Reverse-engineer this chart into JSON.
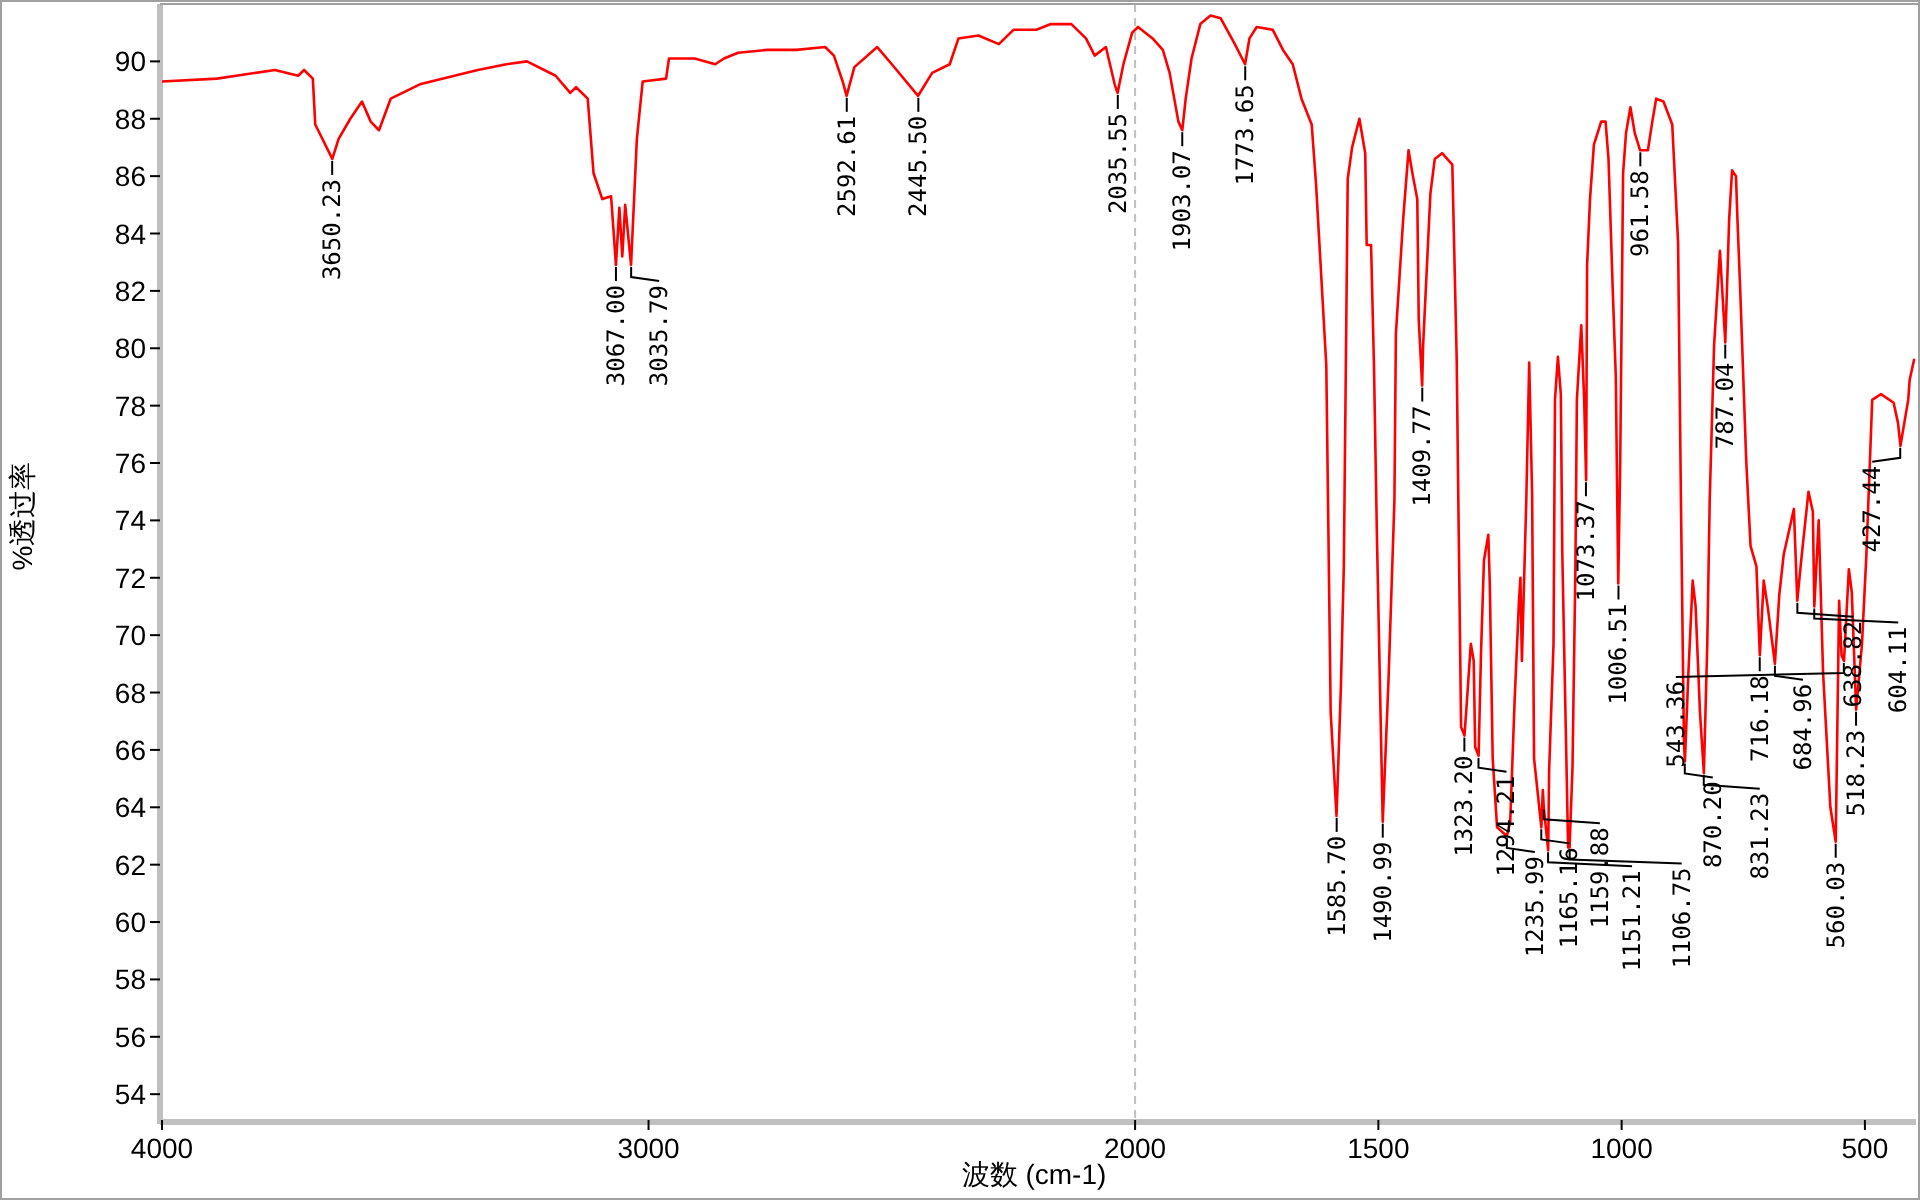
{
  "chart_data": {
    "type": "line",
    "xlabel": "波数 (cm-1)",
    "ylabel": "%透过率",
    "xlim": [
      4000,
      395
    ],
    "ylim": [
      53.1,
      92
    ],
    "xticks": [
      4000,
      3000,
      2000,
      1500,
      1000,
      500
    ],
    "yticks": [
      54,
      56,
      58,
      60,
      62,
      64,
      66,
      68,
      70,
      72,
      74,
      76,
      78,
      80,
      82,
      84,
      86,
      88,
      90
    ],
    "grid": false,
    "marker": "none",
    "line_style": "solid",
    "ref_lines": [
      {
        "axis": "x",
        "value": 2000,
        "label": null,
        "color": "#c0c0c0",
        "line_style": "dashed"
      }
    ],
    "series": [
      {
        "color": "#ff0000",
        "x": [
          4000,
          3887,
          3768,
          3720,
          3708,
          3690,
          3685,
          3650,
          3637,
          3613,
          3589,
          3571,
          3554,
          3530,
          3470,
          3351,
          3292,
          3250,
          3191,
          3161,
          3149,
          3125,
          3113,
          3095,
          3077,
          3067,
          3060,
          3054,
          3048,
          3036,
          3024,
          3012,
          2964,
          2958,
          2905,
          2863,
          2845,
          2816,
          2756,
          2696,
          2637,
          2619,
          2601,
          2593,
          2577,
          2530,
          2500,
          2446,
          2417,
          2381,
          2363,
          2322,
          2280,
          2250,
          2203,
          2173,
          2131,
          2101,
          2083,
          2060,
          2042,
          2036,
          2024,
          2006,
          1994,
          1964,
          1943,
          1929,
          1911,
          1903,
          1896,
          1884,
          1866,
          1845,
          1824,
          1795,
          1774,
          1765,
          1750,
          1717,
          1696,
          1676,
          1658,
          1637,
          1628,
          1607,
          1598,
          1586,
          1577,
          1571,
          1563,
          1554,
          1539,
          1527,
          1524,
          1515,
          1509,
          1503,
          1491,
          1479,
          1467,
          1464,
          1449,
          1438,
          1429,
          1420,
          1417,
          1410,
          1408,
          1393,
          1384,
          1369,
          1348,
          1339,
          1336,
          1330,
          1323,
          1318,
          1310,
          1304,
          1301,
          1294,
          1289,
          1283,
          1274,
          1271,
          1265,
          1256,
          1236,
          1229,
          1220,
          1211,
          1208,
          1205,
          1196,
          1190,
          1184,
          1180,
          1165,
          1162,
          1160,
          1151,
          1149,
          1140,
          1137,
          1131,
          1125,
          1122,
          1110,
          1107,
          1101,
          1095,
          1092,
          1083,
          1077,
          1073,
          1071,
          1065,
          1057,
          1042,
          1033,
          1027,
          1018,
          1012,
          1007,
          1003,
          997,
          991,
          982,
          973,
          962,
          946,
          937,
          929,
          914,
          896,
          884,
          878,
          872,
          870,
          863,
          854,
          848,
          839,
          831,
          824,
          819,
          810,
          798,
          787,
          779,
          773,
          765,
          762,
          756,
          744,
          735,
          723,
          716,
          708,
          699,
          685,
          676,
          667,
          646,
          639,
          631,
          616,
          607,
          604,
          595,
          586,
          571,
          560,
          553,
          548,
          543,
          533,
          527,
          518,
          506,
          497,
          485,
          467,
          441,
          432,
          427,
          411,
          408,
          399
        ],
        "values": [
          89.3,
          89.4,
          89.7,
          89.5,
          89.7,
          89.4,
          87.8,
          86.6,
          87.3,
          88.0,
          88.6,
          87.9,
          87.6,
          88.7,
          89.2,
          89.7,
          89.9,
          90.0,
          89.5,
          88.9,
          89.1,
          88.7,
          86.1,
          85.2,
          85.3,
          82.9,
          84.9,
          83.2,
          85.0,
          82.9,
          87.3,
          89.3,
          89.4,
          90.1,
          90.1,
          89.9,
          90.1,
          90.3,
          90.4,
          90.4,
          90.5,
          90.2,
          89.3,
          88.8,
          89.8,
          90.5,
          89.9,
          88.8,
          89.6,
          89.9,
          90.8,
          90.9,
          90.6,
          91.1,
          91.1,
          91.3,
          91.3,
          90.8,
          90.2,
          90.5,
          89.2,
          88.9,
          89.9,
          91.0,
          91.2,
          90.8,
          90.4,
          89.6,
          87.9,
          87.6,
          88.7,
          90.1,
          91.3,
          91.6,
          91.5,
          90.6,
          89.9,
          90.8,
          91.2,
          91.1,
          90.4,
          89.9,
          88.7,
          87.8,
          85.7,
          79.4,
          67.3,
          63.7,
          68.2,
          72.4,
          85.9,
          87.0,
          88.0,
          86.8,
          83.6,
          83.6,
          79.4,
          73.5,
          63.5,
          68.5,
          74.7,
          80.5,
          84.5,
          86.9,
          86.0,
          85.2,
          81.0,
          78.7,
          80.1,
          85.4,
          86.6,
          86.8,
          86.4,
          79.6,
          75.2,
          66.8,
          66.5,
          67.7,
          69.7,
          69.1,
          66.1,
          65.8,
          69.4,
          72.6,
          73.5,
          71.8,
          65.7,
          63.3,
          63.0,
          63.5,
          67.7,
          71.2,
          72.0,
          69.1,
          74.7,
          79.5,
          74.9,
          65.7,
          63.3,
          64.6,
          64.0,
          62.5,
          65.3,
          69.7,
          78.2,
          79.7,
          78.4,
          72.9,
          62.6,
          62.6,
          65.4,
          72.4,
          78.2,
          80.8,
          78.2,
          75.4,
          82.9,
          85.2,
          87.1,
          87.9,
          87.9,
          86.6,
          81.9,
          79.0,
          71.8,
          75.9,
          86.1,
          87.5,
          88.4,
          87.5,
          86.9,
          86.9,
          87.9,
          88.7,
          88.6,
          87.8,
          83.7,
          74.5,
          66.3,
          65.6,
          68.6,
          71.9,
          71.0,
          67.3,
          65.2,
          69.7,
          74.7,
          80.1,
          83.4,
          80.2,
          84.5,
          86.2,
          86.0,
          84.5,
          81.9,
          76.1,
          73.1,
          72.4,
          69.3,
          71.9,
          70.9,
          69.0,
          71.4,
          72.8,
          74.4,
          71.2,
          72.6,
          75.0,
          74.3,
          71.0,
          74.0,
          68.7,
          64.0,
          62.8,
          71.2,
          69.3,
          69.1,
          72.3,
          71.5,
          67.4,
          69.7,
          72.8,
          78.2,
          78.4,
          78.1,
          77.4,
          76.6,
          78.2,
          78.9,
          79.6
        ]
      }
    ],
    "annotations": [
      {
        "text": "3650.23",
        "x": 3650.23,
        "y": 86.6
      },
      {
        "text": "3067.00",
        "x": 3067.0,
        "y": 82.9
      },
      {
        "text": "3035.79",
        "x": 3035.79,
        "y": 82.9
      },
      {
        "text": "2592.61",
        "x": 2592.61,
        "y": 88.8
      },
      {
        "text": "2445.50",
        "x": 2445.5,
        "y": 88.8
      },
      {
        "text": "2035.55",
        "x": 2035.55,
        "y": 88.9
      },
      {
        "text": "1903.07",
        "x": 1903.07,
        "y": 87.6
      },
      {
        "text": "1773.65",
        "x": 1773.65,
        "y": 89.9
      },
      {
        "text": "1585.70",
        "x": 1585.7,
        "y": 63.7
      },
      {
        "text": "1490.99",
        "x": 1490.99,
        "y": 63.5
      },
      {
        "text": "1409.77",
        "x": 1409.77,
        "y": 78.7
      },
      {
        "text": "1323.20",
        "x": 1323.2,
        "y": 66.5
      },
      {
        "text": "1294.21",
        "x": 1294.21,
        "y": 65.8
      },
      {
        "text": "1235.99",
        "x": 1235.99,
        "y": 63.0
      },
      {
        "text": "1165.16",
        "x": 1165.16,
        "y": 63.3
      },
      {
        "text": "1159.88",
        "x": 1159.88,
        "y": 64.0
      },
      {
        "text": "1151.21",
        "x": 1151.21,
        "y": 62.5
      },
      {
        "text": "1106.75",
        "x": 1106.75,
        "y": 62.6
      },
      {
        "text": "1073.37",
        "x": 1073.37,
        "y": 75.4
      },
      {
        "text": "1006.51",
        "x": 1006.51,
        "y": 71.8
      },
      {
        "text": "961.58",
        "x": 961.58,
        "y": 86.9
      },
      {
        "text": "870.20",
        "x": 870.2,
        "y": 65.6
      },
      {
        "text": "831.23",
        "x": 831.23,
        "y": 65.2
      },
      {
        "text": "787.04",
        "x": 787.04,
        "y": 80.2
      },
      {
        "text": "716.18",
        "x": 716.18,
        "y": 69.3
      },
      {
        "text": "684.96",
        "x": 684.96,
        "y": 69.0
      },
      {
        "text": "638.82",
        "x": 638.82,
        "y": 71.2
      },
      {
        "text": "604.11",
        "x": 604.11,
        "y": 71.0
      },
      {
        "text": "560.03",
        "x": 560.03,
        "y": 62.8
      },
      {
        "text": "543.36",
        "x": 543.36,
        "y": 69.1
      },
      {
        "text": "518.23",
        "x": 518.23,
        "y": 67.4
      },
      {
        "text": "427.44",
        "x": 427.44,
        "y": 76.6
      }
    ]
  }
}
